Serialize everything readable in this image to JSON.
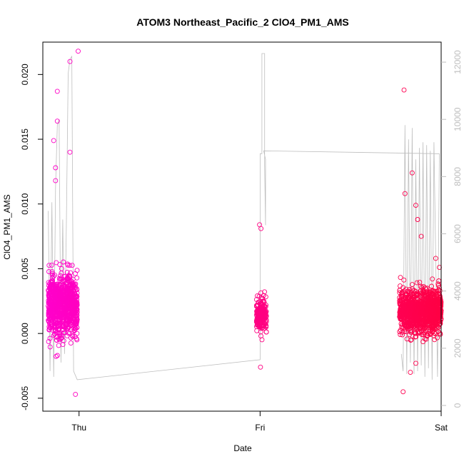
{
  "chart_data": {
    "type": "scatter",
    "title": "ATOM3 Northeast_Pacific_2 ClO4_PM1_AMS",
    "xlabel": "Date",
    "ylabel": "ClO4_PM1_AMS",
    "x_ticks": [
      "Thu",
      "Fri",
      "Sat"
    ],
    "x_range_days": [
      -0.2,
      2.0
    ],
    "ylim": [
      -0.006,
      0.0225
    ],
    "y_ticks": [
      -0.005,
      0.0,
      0.005,
      0.01,
      0.015,
      0.02
    ],
    "y_tick_labels": [
      "-0.005",
      "0.000",
      "0.005",
      "0.010",
      "0.015",
      "0.020"
    ],
    "y2lim": [
      -200,
      12700
    ],
    "y2_ticks": [
      0,
      2000,
      4000,
      6000,
      8000,
      10000,
      12000
    ],
    "y2_tick_labels": [
      "0",
      "2000",
      "4000",
      "6000",
      "8000",
      "10000",
      "12000"
    ],
    "grid": false,
    "colors": {
      "points_low": "#ff00cc",
      "points_high": "#ff0044",
      "secondary_line": "#bebebe",
      "axis": "#000000",
      "right_axis": "#bebebe"
    },
    "series": [
      {
        "type": "scatter",
        "clusters": [
          {
            "x_start": -0.17,
            "x_end": -0.01,
            "center": 0.0022,
            "spread": 0.0022,
            "n": 900
          },
          {
            "x_start": 0.98,
            "x_end": 1.035,
            "center": 0.0015,
            "spread": 0.0011,
            "n": 220
          },
          {
            "x_start": 1.77,
            "x_end": 2.0,
            "center": 0.0018,
            "spread": 0.0015,
            "n": 1100
          }
        ],
        "outliers": [
          {
            "x": -0.005,
            "y": 0.0218
          },
          {
            "x": -0.05,
            "y": 0.021
          },
          {
            "x": -0.12,
            "y": 0.0187
          },
          {
            "x": -0.12,
            "y": 0.0164
          },
          {
            "x": -0.14,
            "y": 0.0149
          },
          {
            "x": -0.05,
            "y": 0.014
          },
          {
            "x": -0.13,
            "y": 0.0128
          },
          {
            "x": -0.13,
            "y": 0.0118
          },
          {
            "x": -0.02,
            "y": -0.0047
          },
          {
            "x": 0.997,
            "y": 0.0084
          },
          {
            "x": 1.005,
            "y": 0.0081
          },
          {
            "x": 1.002,
            "y": -0.0026
          },
          {
            "x": 1.795,
            "y": 0.0188
          },
          {
            "x": 1.79,
            "y": -0.0045
          },
          {
            "x": 1.83,
            "y": -0.003
          },
          {
            "x": 1.84,
            "y": 0.0124
          },
          {
            "x": 1.8,
            "y": 0.0108
          },
          {
            "x": 1.86,
            "y": 0.0099
          },
          {
            "x": 1.87,
            "y": 0.0088
          },
          {
            "x": 1.89,
            "y": 0.0075
          },
          {
            "x": 1.99,
            "y": 0.0051
          },
          {
            "x": 1.97,
            "y": 0.0058
          },
          {
            "x": 1.86,
            "y": -0.0023
          }
        ]
      },
      {
        "type": "line",
        "axis": "right",
        "points": [
          [
            -0.17,
            6800
          ],
          [
            -0.16,
            1200
          ],
          [
            -0.15,
            7100
          ],
          [
            -0.14,
            1000
          ],
          [
            -0.13,
            7600
          ],
          [
            -0.12,
            9800
          ],
          [
            -0.11,
            10000
          ],
          [
            -0.1,
            1500
          ],
          [
            -0.09,
            6500
          ],
          [
            -0.08,
            1800
          ],
          [
            -0.07,
            6400
          ],
          [
            -0.06,
            11600
          ],
          [
            -0.05,
            12100
          ],
          [
            -0.04,
            12200
          ],
          [
            -0.03,
            1200
          ],
          [
            -0.01,
            900
          ],
          [
            1.0,
            1600
          ],
          [
            1.0,
            8800
          ],
          [
            1.01,
            8800
          ],
          [
            1.01,
            12300
          ],
          [
            1.025,
            12300
          ],
          [
            1.025,
            8400
          ],
          [
            1.03,
            6300
          ],
          [
            1.03,
            8600
          ],
          [
            1.02,
            8900
          ],
          [
            1.99,
            8800
          ],
          [
            1.98,
            1000
          ],
          [
            1.96,
            9200
          ],
          [
            1.95,
            900
          ],
          [
            1.94,
            8900
          ],
          [
            1.93,
            1300
          ],
          [
            1.92,
            9100
          ],
          [
            1.91,
            1000
          ],
          [
            1.9,
            9200
          ],
          [
            1.89,
            1400
          ],
          [
            1.88,
            9000
          ],
          [
            1.87,
            1200
          ],
          [
            1.86,
            8600
          ],
          [
            1.85,
            1100
          ],
          [
            1.84,
            9700
          ],
          [
            1.83,
            1500
          ],
          [
            1.82,
            9300
          ],
          [
            1.81,
            1100
          ],
          [
            1.8,
            9800
          ],
          [
            1.79,
            1200
          ],
          [
            1.78,
            1800
          ]
        ]
      }
    ]
  }
}
